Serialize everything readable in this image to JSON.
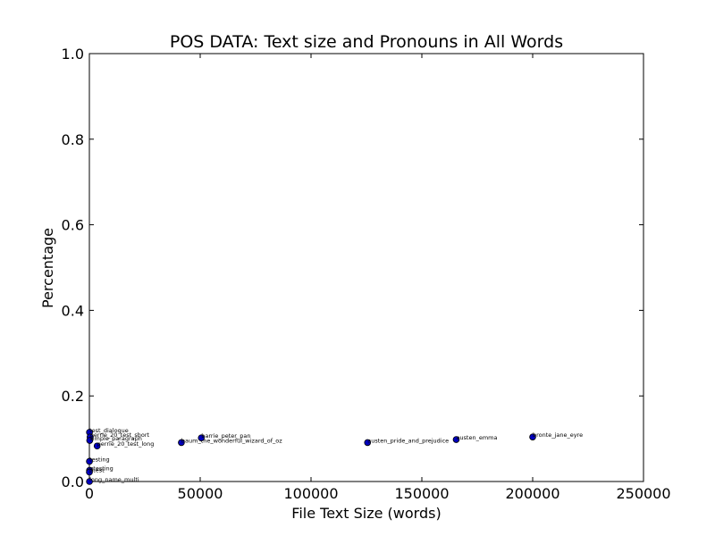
{
  "chart_data": {
    "type": "scatter",
    "title": "POS DATA: Text size and Pronouns in All Words",
    "xlabel": "File Text Size (words)",
    "ylabel": "Percentage",
    "xlim": [
      0,
      250000
    ],
    "ylim": [
      0.0,
      1.0
    ],
    "x_ticks": [
      "0",
      "50000",
      "100000",
      "150000",
      "200000",
      "250000"
    ],
    "y_ticks": [
      "0.0",
      "0.2",
      "0.4",
      "0.6",
      "0.8",
      "1.0"
    ],
    "grid": false,
    "marker_color": "#0000bf",
    "points": [
      {
        "label": "test_dialogue",
        "x": 50,
        "y": 0.115
      },
      {
        "label": "perrie_20_test_short",
        "x": 300,
        "y": 0.104
      },
      {
        "label": "simple_paragraph",
        "x": 150,
        "y": 0.096
      },
      {
        "label": "perrie_20_test_long",
        "x": 3500,
        "y": 0.083
      },
      {
        "label": "testing",
        "x": 30,
        "y": 0.047
      },
      {
        "label": "gtesting",
        "x": 60,
        "y": 0.026
      },
      {
        "label": "ptest",
        "x": 20,
        "y": 0.022
      },
      {
        "label": "long_name_multi",
        "x": 40,
        "y": 0.0
      },
      {
        "label": "baum_the_wonderful_wizard_of_oz",
        "x": 41500,
        "y": 0.091
      },
      {
        "label": "barrie_peter_pan",
        "x": 50500,
        "y": 0.102
      },
      {
        "label": "austen_pride_and_prejudice",
        "x": 125500,
        "y": 0.091
      },
      {
        "label": "austen_emma",
        "x": 165500,
        "y": 0.098
      },
      {
        "label": "bronte_jane_eyre",
        "x": 200000,
        "y": 0.104
      }
    ]
  }
}
